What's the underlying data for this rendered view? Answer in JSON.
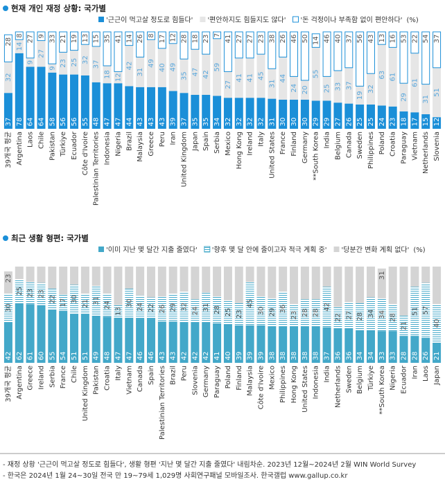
{
  "chart_data": [
    {
      "type": "stacked-bar",
      "title": "현재 개인 재정 상황: 국가별",
      "unit": "(%)",
      "ylim": [
        0,
        100
      ],
      "categories": [
        "39개국 평균",
        "Argentina",
        "Laos",
        "Chile",
        "Pakistan",
        "Türkiye",
        "Ecuador",
        "Côte d'Ivoire",
        "Palestinian Territories",
        "Indonesia",
        "Nigeria",
        "Brazil",
        "Malaysia",
        "Greece",
        "Peru",
        "Iran",
        "United Kingdom",
        "Japan",
        "Spain",
        "Serbia",
        "Mexico",
        "Hong Kong",
        "Ireland",
        "Italy",
        "United States",
        "France",
        "Finland",
        "Germany",
        "**South Korea",
        "India",
        "Belgium",
        "Canada",
        "Sweden",
        "Philippines",
        "Poland",
        "Croatia",
        "Paraguay",
        "Vietnam",
        "Netherlands",
        "Slovenia"
      ],
      "series": [
        {
          "name": "'근근이 먹고살 정도로 힘들다'",
          "color": "#1b8fd8",
          "fill_style": "solid",
          "label_color": "#ffffff",
          "values": [
            37,
            78,
            64,
            64,
            58,
            56,
            56,
            55,
            48,
            47,
            47,
            44,
            43,
            43,
            43,
            39,
            37,
            35,
            35,
            34,
            32,
            32,
            32,
            32,
            31,
            30,
            30,
            30,
            29,
            29,
            27,
            26,
            25,
            25,
            24,
            23,
            18,
            17,
            15,
            12
          ]
        },
        {
          "name": "'편안하지도 힘들지도 않다'",
          "color": "#e6e6e6",
          "fill_style": "solid",
          "label_color": "#5aa7dc",
          "values": [
            32,
            14,
            9,
            27,
            9,
            23,
            25,
            32,
            37,
            18,
            12,
            42,
            31,
            49,
            40,
            49,
            35,
            47,
            42,
            59,
            27,
            41,
            41,
            45,
            31,
            44,
            24,
            20,
            55,
            25,
            33,
            37,
            19,
            32,
            63,
            61,
            29,
            61,
            31,
            51
          ]
        },
        {
          "name": "'돈 걱정이나 부족함 없이 편안하다'",
          "color": "#1b8fd8",
          "fill_style": "outline",
          "label_color": "#555555",
          "values": [
            28,
            8,
            27,
            9,
            33,
            21,
            19,
            13,
            15,
            35,
            41,
            14,
            26,
            8,
            17,
            12,
            28,
            18,
            23,
            7,
            41,
            27,
            27,
            23,
            38,
            26,
            46,
            50,
            14,
            46,
            40,
            37,
            56,
            43,
            13,
            16,
            53,
            22,
            54,
            37
          ]
        }
      ]
    },
    {
      "type": "stacked-bar",
      "title": "최근 생활 형편: 국가별",
      "unit": "(%)",
      "ylim": [
        0,
        100
      ],
      "categories": [
        "39개국 평균",
        "Argentina",
        "Greece",
        "Ireland",
        "Serbia",
        "France",
        "Chile",
        "United Kingdom",
        "Pakistan",
        "Croatia",
        "Italy",
        "Vietnam",
        "Canada",
        "Spain",
        "Palestinian Territories",
        "Brazil",
        "Peru",
        "Slovenia",
        "Germany",
        "Paraguay",
        "Poland",
        "Finland",
        "Malaysia",
        "Côte d'Ivoire",
        "Mexico",
        "Philippines",
        "Hong Kong",
        "United States",
        "Indonesia",
        "India",
        "Netherlands",
        "Sweden",
        "Belgium",
        "Türkiye",
        "**South Korea",
        "Nigeria",
        "Ecuador",
        "Iran",
        "Laos",
        "Japan"
      ],
      "series": [
        {
          "name": "'이미 지난 몇 달간 지출 줄였다'",
          "color": "#43a8c9",
          "fill_style": "solid",
          "label_color": "#ffffff",
          "values": [
            42,
            62,
            61,
            60,
            55,
            54,
            51,
            51,
            49,
            48,
            47,
            47,
            46,
            46,
            43,
            43,
            42,
            42,
            42,
            41,
            40,
            39,
            39,
            39,
            38,
            38,
            38,
            38,
            38,
            37,
            36,
            36,
            34,
            34,
            33,
            33,
            28,
            28,
            26,
            21
          ]
        },
        {
          "name": "'향후 몇 달 안에 줄이고자 적극 계획 중'",
          "color": "#43a8c9",
          "fill_style": "hatch",
          "label_color": "#555555",
          "values": [
            30,
            25,
            23,
            23,
            22,
            17,
            30,
            21,
            31,
            24,
            13,
            30,
            24,
            22,
            26,
            29,
            32,
            24,
            31,
            28,
            25,
            23,
            45,
            30,
            29,
            36,
            23,
            28,
            28,
            42,
            22,
            27,
            28,
            34,
            34,
            28,
            21,
            51,
            57,
            40
          ]
        },
        {
          "name": "'당분간 변화 계획 없다'",
          "color": "#d4d4d4",
          "fill_style": "solid",
          "label_color": "#555555",
          "values": [
            23,
            13,
            16,
            17,
            23,
            29,
            19,
            28,
            20,
            28,
            40,
            23,
            30,
            32,
            31,
            28,
            26,
            34,
            27,
            31,
            35,
            38,
            16,
            31,
            33,
            26,
            39,
            34,
            34,
            21,
            42,
            37,
            38,
            32,
            31,
            39,
            51,
            21,
            17,
            39
          ],
          "value_labels": [
            "23",
            null,
            null,
            null,
            null,
            null,
            null,
            null,
            null,
            null,
            null,
            null,
            null,
            null,
            null,
            null,
            null,
            null,
            null,
            null,
            null,
            null,
            null,
            null,
            null,
            null,
            null,
            null,
            null,
            null,
            null,
            null,
            null,
            null,
            "31",
            null,
            null,
            null,
            null,
            null
          ]
        }
      ]
    }
  ],
  "footnotes": [
    "- 재정 상황 '근근이 먹고살 정도로 힘들다', 생활 형편 '지난 몇 달간 지출 줄였다' 내림차순. 2023년 12월~2024년 2월 WIN World Survey",
    "- 한국은 2024년 1월 24~30일 전국 만 19~79세 1,029명 사회연구패널 모바일조사. 한국갤럽 www.gallup.co.kr"
  ]
}
